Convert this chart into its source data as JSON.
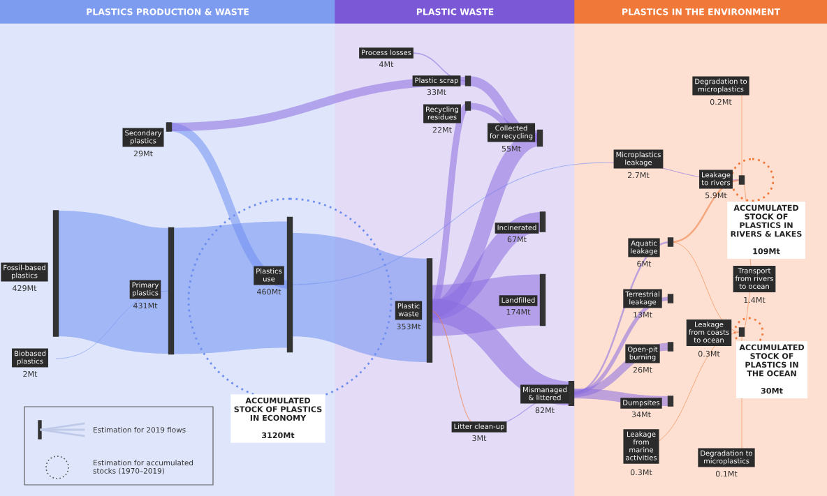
{
  "chart_data": {
    "type": "other",
    "categories": [
      "Fossil-based\nplastics",
      "Biobased\nplastics",
      "Primary\nplastics",
      "Secondary\nplastics",
      "Plastics\nuse",
      "Process losses",
      "Plastic scrap",
      "Recycling\nresidues",
      "Collected\nfor recycling",
      "Plastic\nwaste",
      "Incinerated",
      "Landfilled",
      "Mismanaged\n& littered",
      "Litter clean-up",
      "Microplastics\nleakage",
      "Aquatic\nleakage",
      "Terrestrial\nleakage",
      "Open-pit\nburning",
      "Dumpsites",
      "Leakage\nfrom\nmarine\nactivities",
      "Leakage\nto rivers",
      "Leakage\nfrom coasts\nto ocean",
      "Transport\nfrom rivers\nto ocean",
      "Degradation to\nmicroplastics",
      "Degradation to\nmicroplastics"
    ],
    "values": [
      429,
      2,
      431,
      29,
      460,
      4,
      33,
      22,
      55,
      353,
      67,
      174,
      82,
      3,
      2.7,
      6,
      13,
      26,
      34,
      0.3,
      5.9,
      0.3,
      1.4,
      0.2,
      0.1
    ],
    "value_labels": [
      "429Mt",
      "2Mt",
      "431Mt",
      "29Mt",
      "460Mt",
      "4Mt",
      "33Mt",
      "22Mt",
      "55Mt",
      "353Mt",
      "67Mt",
      "174Mt",
      "82Mt",
      "3Mt",
      "2.7Mt",
      "6Mt",
      "13Mt",
      "26Mt",
      "34Mt",
      "0.3Mt",
      "5.9Mt",
      "0.3Mt",
      "1.4Mt",
      "0.2Mt",
      "0.1Mt"
    ],
    "annotations": [
      "PLASTICS PRODUCTION & WASTE",
      "PLASTIC WASTE",
      "PLASTICS IN THE ENVIRONMENT",
      "ACCUMULATED\nSTOCK OF PLASTICS\nIN ECONOMY\n\n3120Mt",
      "ACCUMULATED\nSTOCK OF\nPLASTICS IN\nRIVERS & LAKES\n\n109Mt",
      "ACCUMULATED\nSTOCK OF\nPLASTICS IN\nTHE OCEAN\n\n30Mt",
      "Estimation for 2019 flows",
      "Estimation for accumulated\nstocks (1970–2019)"
    ]
  }
}
